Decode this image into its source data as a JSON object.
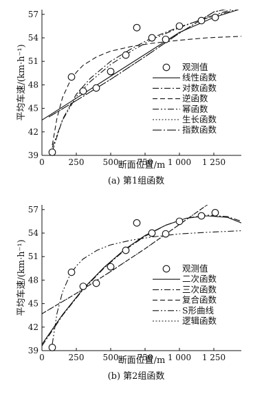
{
  "chart_data": [
    {
      "type": "scatter",
      "caption": "(a) 第1组函数",
      "xlabel": "断面位置/m",
      "ylabel": "平均车速/(km·h⁻¹)",
      "xlim": [
        0,
        1450
      ],
      "ylim": [
        39,
        57.6
      ],
      "x_ticks": [
        {
          "value": 0,
          "label": "0"
        },
        {
          "value": 250,
          "label": "250"
        },
        {
          "value": 500,
          "label": "500"
        },
        {
          "value": 750,
          "label": "750"
        },
        {
          "value": 1000,
          "label": "1 000"
        },
        {
          "value": 1250,
          "label": "1 250"
        }
      ],
      "y_ticks": [
        {
          "value": 39,
          "label": "39"
        },
        {
          "value": 42,
          "label": "42"
        },
        {
          "value": 45,
          "label": "45"
        },
        {
          "value": 48,
          "label": "48"
        },
        {
          "value": 51,
          "label": "51"
        },
        {
          "value": 54,
          "label": "54"
        },
        {
          "value": 57,
          "label": "57"
        }
      ],
      "observations": {
        "name": "观测值",
        "x": [
          75,
          215,
          300,
          395,
          500,
          610,
          690,
          800,
          900,
          1000,
          1160,
          1260
        ],
        "y": [
          39.4,
          49.0,
          47.2,
          47.6,
          49.7,
          51.8,
          55.3,
          54.0,
          53.8,
          55.5,
          56.2,
          56.6
        ]
      },
      "series": [
        {
          "name": "线性函数",
          "dash": "solid",
          "x": [
            0,
            250,
            500,
            750,
            1000,
            1250,
            1430
          ],
          "y": [
            43.5,
            46.3,
            49.1,
            51.9,
            54.7,
            56.6,
            57.6
          ]
        },
        {
          "name": "对数函数",
          "dash": "dashdot",
          "x": [
            75,
            150,
            250,
            350,
            500,
            650,
            800,
            1000,
            1200,
            1430
          ],
          "y": [
            39.5,
            43.6,
            46.8,
            48.8,
            51.0,
            52.6,
            54.0,
            55.4,
            56.5,
            57.7
          ]
        },
        {
          "name": "逆函数",
          "dash": "dashed",
          "x": [
            75,
            110,
            150,
            200,
            250,
            300,
            400,
            500,
            650,
            800,
            1000,
            1200,
            1450
          ],
          "y": [
            40.3,
            43.8,
            46.4,
            48.3,
            49.6,
            50.5,
            51.6,
            52.3,
            52.9,
            53.3,
            53.7,
            54.0,
            54.2
          ]
        },
        {
          "name": "幂函数",
          "dash": "dashdotdot",
          "x": [
            75,
            150,
            250,
            350,
            500,
            650,
            800,
            1000,
            1200,
            1430
          ],
          "y": [
            40.0,
            43.5,
            46.5,
            48.4,
            50.6,
            52.3,
            53.8,
            55.3,
            56.6,
            57.9
          ]
        },
        {
          "name": "生长函数",
          "dash": "dotted",
          "x": [
            50,
            250,
            500,
            750,
            1000,
            1250,
            1430
          ],
          "y": [
            43.9,
            46.0,
            48.7,
            51.6,
            54.6,
            57.3,
            58.0
          ]
        },
        {
          "name": "指数函数",
          "dash": "longdashdot",
          "x": [
            50,
            250,
            500,
            750,
            1000,
            1250,
            1430
          ],
          "y": [
            43.9,
            46.0,
            48.7,
            51.6,
            54.6,
            57.3,
            58.0
          ]
        }
      ]
    },
    {
      "type": "scatter",
      "caption": "(b) 第2组函数",
      "xlabel": "断面位置/m",
      "ylabel": "平均车速/(km·h⁻¹)",
      "xlim": [
        0,
        1450
      ],
      "ylim": [
        39,
        57.6
      ],
      "x_ticks": [
        {
          "value": 0,
          "label": "0"
        },
        {
          "value": 250,
          "label": "250"
        },
        {
          "value": 500,
          "label": "500"
        },
        {
          "value": 750,
          "label": "750"
        },
        {
          "value": 1000,
          "label": "1 000"
        },
        {
          "value": 1250,
          "label": "1 250"
        }
      ],
      "y_ticks": [
        {
          "value": 39,
          "label": "39"
        },
        {
          "value": 42,
          "label": "42"
        },
        {
          "value": 45,
          "label": "45"
        },
        {
          "value": 48,
          "label": "48"
        },
        {
          "value": 51,
          "label": "51"
        },
        {
          "value": 54,
          "label": "54"
        },
        {
          "value": 57,
          "label": "57"
        }
      ],
      "observations": {
        "name": "观测值",
        "x": [
          75,
          215,
          300,
          395,
          500,
          610,
          690,
          800,
          900,
          1000,
          1160,
          1260
        ],
        "y": [
          39.4,
          49.0,
          47.2,
          47.6,
          49.7,
          51.8,
          55.3,
          54.0,
          53.9,
          55.5,
          56.2,
          56.6
        ]
      },
      "series": [
        {
          "name": "二次函数",
          "dash": "solid",
          "x": [
            0,
            150,
            300,
            450,
            600,
            750,
            900,
            1050,
            1200,
            1350,
            1450
          ],
          "y": [
            39.8,
            43.6,
            46.9,
            49.6,
            51.9,
            53.7,
            55.0,
            55.9,
            56.2,
            56.0,
            55.3
          ]
        },
        {
          "name": "三次函数",
          "dash": "dashdot",
          "x": [
            0,
            150,
            300,
            450,
            600,
            750,
            900,
            1050,
            1200,
            1350,
            1450
          ],
          "y": [
            39.6,
            43.5,
            46.8,
            49.5,
            51.8,
            53.6,
            55.0,
            55.9,
            56.3,
            56.1,
            55.5
          ]
        },
        {
          "name": "复合函数",
          "dash": "dashed",
          "x": [
            0,
            250,
            500,
            750,
            1000,
            1250,
            1420
          ],
          "y": [
            43.7,
            46.3,
            49.1,
            52.0,
            55.1,
            58.2,
            59.0
          ]
        },
        {
          "name": "S形曲线",
          "dash": "dashdotdot",
          "x": [
            75,
            110,
            150,
            200,
            250,
            300,
            400,
            500,
            650,
            800,
            1000,
            1200,
            1450
          ],
          "y": [
            39.8,
            43.8,
            46.5,
            48.5,
            49.8,
            50.7,
            51.8,
            52.5,
            53.1,
            53.5,
            53.9,
            54.1,
            54.3
          ]
        },
        {
          "name": "逻辑函数",
          "dash": "dotted",
          "x": [
            0,
            250,
            500,
            750,
            1000,
            1250,
            1420
          ],
          "y": [
            43.7,
            46.3,
            49.1,
            52.0,
            55.1,
            58.2,
            59.0
          ]
        }
      ]
    }
  ]
}
